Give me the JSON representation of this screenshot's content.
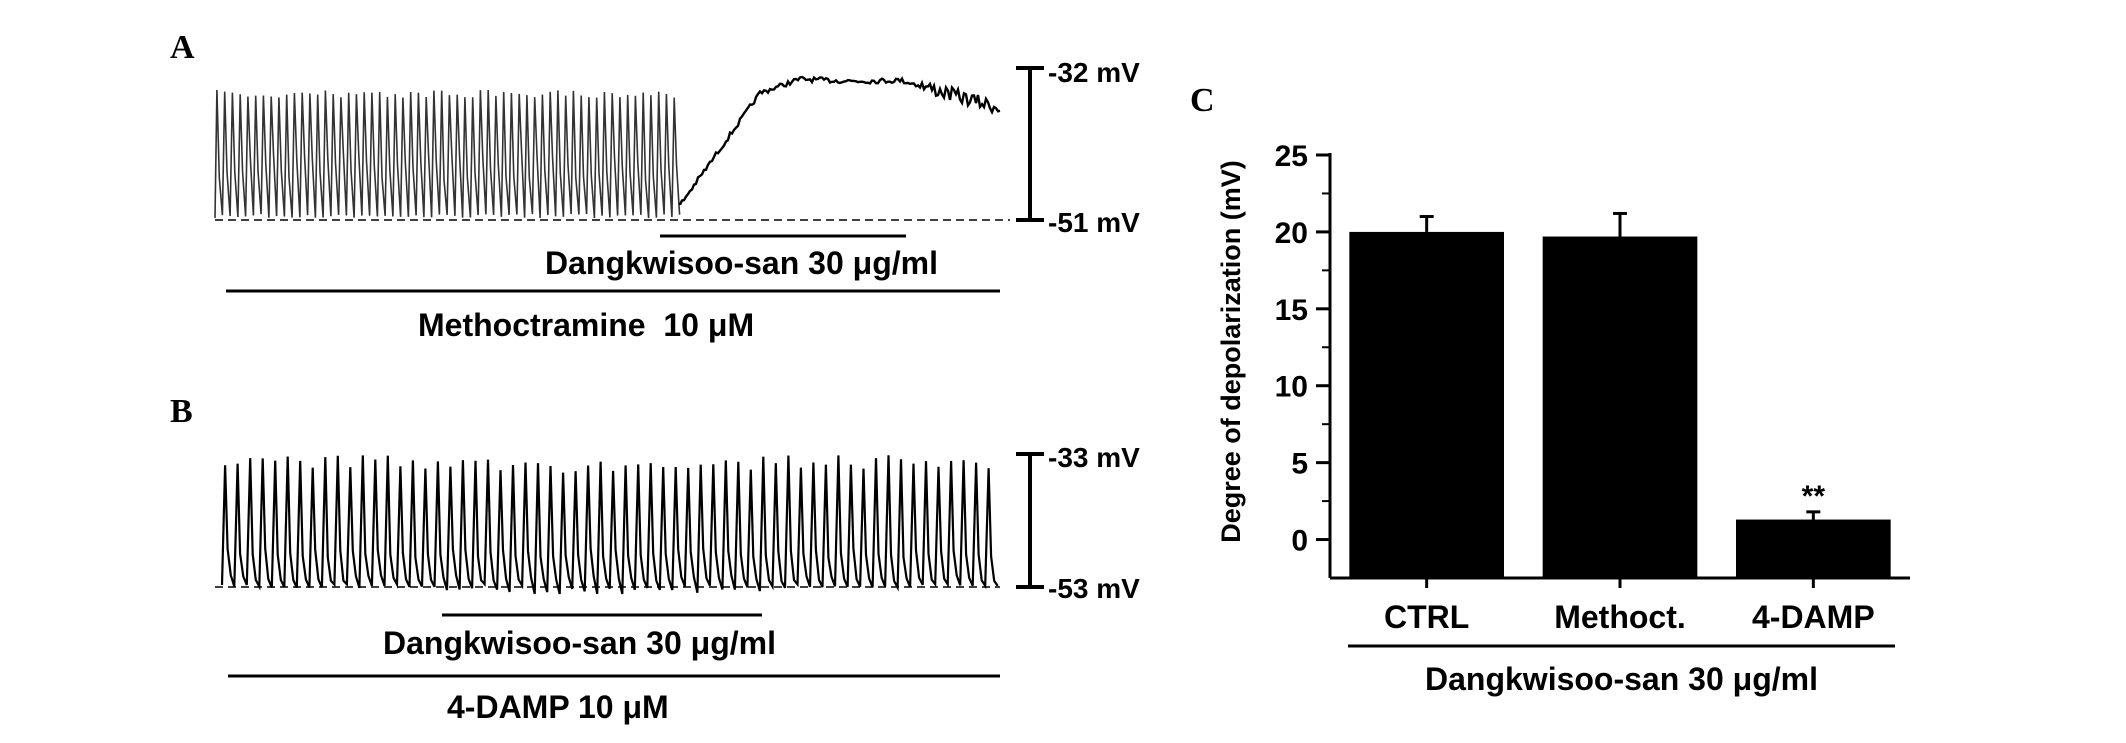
{
  "panels": {
    "a": {
      "letter": "A",
      "scale_top": "-32 mV",
      "scale_bottom": "-51 mV",
      "drug_label": "Dangkwisoo-san 30 μg/ml",
      "antagonist_label": "Methoctramine  10 μM"
    },
    "b": {
      "letter": "B",
      "scale_top": "-33 mV",
      "scale_bottom": "-53 mV",
      "drug_label": "Dangkwisoo-san 30 μg/ml",
      "antagonist_label": "4-DAMP 10 μM"
    },
    "c": {
      "letter": "C"
    }
  },
  "colors": {
    "ink": "#000000",
    "trace_a_pre": "#333333",
    "background": "#ffffff"
  },
  "chart_data": {
    "type": "bar",
    "categories": [
      "CTRL",
      "Methoct.",
      "4-DAMP"
    ],
    "values": [
      20.0,
      19.7,
      1.3
    ],
    "errors": [
      1.0,
      1.5,
      0.5
    ],
    "significance": [
      "",
      "",
      "**"
    ],
    "ylabel": "Degree of depolarization (mV)",
    "xlabel": "Dangkwisoo-san 30 μg/ml",
    "ylim": [
      -2.5,
      25
    ],
    "yticks": [
      0,
      5,
      10,
      15,
      20,
      25
    ],
    "bar_color": "#000000",
    "grid": false
  }
}
